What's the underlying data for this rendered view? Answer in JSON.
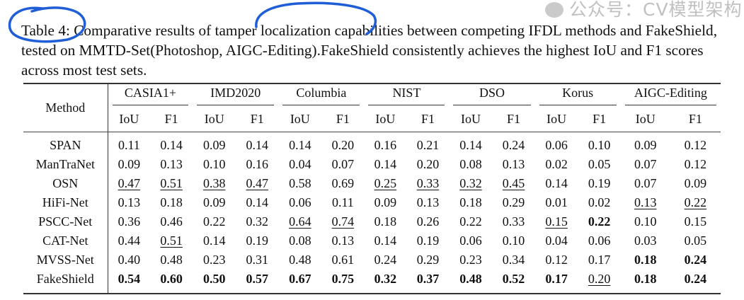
{
  "caption": "Table 4: Comparative results of tamper localization capabilities between competing IFDL methods and FakeShield, tested on MMTD-Set(Photoshop, AIGC-Editing).FakeShield consistently achieves the highest IoU and F1 scores across most test sets.",
  "table": {
    "method_header": "Method",
    "groups": [
      "CASIA1+",
      "IMD2020",
      "Columbia",
      "NIST",
      "DSO",
      "Korus",
      "AIGC-Editing"
    ],
    "metrics": [
      "IoU",
      "F1"
    ],
    "rows": [
      {
        "method": "SPAN",
        "cells": [
          [
            "0.11",
            ""
          ],
          [
            "0.14",
            ""
          ],
          [
            "0.09",
            ""
          ],
          [
            "0.14",
            ""
          ],
          [
            "0.14",
            ""
          ],
          [
            "0.20",
            ""
          ],
          [
            "0.16",
            ""
          ],
          [
            "0.21",
            ""
          ],
          [
            "0.14",
            ""
          ],
          [
            "0.24",
            ""
          ],
          [
            "0.06",
            ""
          ],
          [
            "0.10",
            ""
          ],
          [
            "0.09",
            ""
          ],
          [
            "0.12",
            ""
          ]
        ]
      },
      {
        "method": "ManTraNet",
        "cells": [
          [
            "0.09",
            ""
          ],
          [
            "0.13",
            ""
          ],
          [
            "0.10",
            ""
          ],
          [
            "0.16",
            ""
          ],
          [
            "0.04",
            ""
          ],
          [
            "0.07",
            ""
          ],
          [
            "0.14",
            ""
          ],
          [
            "0.20",
            ""
          ],
          [
            "0.08",
            ""
          ],
          [
            "0.13",
            ""
          ],
          [
            "0.02",
            ""
          ],
          [
            "0.05",
            ""
          ],
          [
            "0.07",
            ""
          ],
          [
            "0.12",
            ""
          ]
        ]
      },
      {
        "method": "OSN",
        "cells": [
          [
            "0.47",
            "u"
          ],
          [
            "0.51",
            "u"
          ],
          [
            "0.38",
            "u"
          ],
          [
            "0.47",
            "u"
          ],
          [
            "0.58",
            ""
          ],
          [
            "0.69",
            ""
          ],
          [
            "0.25",
            "u"
          ],
          [
            "0.33",
            "u"
          ],
          [
            "0.32",
            "u"
          ],
          [
            "0.45",
            "u"
          ],
          [
            "0.14",
            ""
          ],
          [
            "0.19",
            ""
          ],
          [
            "0.07",
            ""
          ],
          [
            "0.09",
            ""
          ]
        ]
      },
      {
        "method": "HiFi-Net",
        "cells": [
          [
            "0.13",
            ""
          ],
          [
            "0.18",
            ""
          ],
          [
            "0.09",
            ""
          ],
          [
            "0.14",
            ""
          ],
          [
            "0.06",
            ""
          ],
          [
            "0.11",
            ""
          ],
          [
            "0.09",
            ""
          ],
          [
            "0.13",
            ""
          ],
          [
            "0.18",
            ""
          ],
          [
            "0.29",
            ""
          ],
          [
            "0.01",
            ""
          ],
          [
            "0.02",
            ""
          ],
          [
            "0.13",
            "u"
          ],
          [
            "0.22",
            "u"
          ]
        ]
      },
      {
        "method": "PSCC-Net",
        "cells": [
          [
            "0.36",
            ""
          ],
          [
            "0.46",
            ""
          ],
          [
            "0.22",
            ""
          ],
          [
            "0.32",
            ""
          ],
          [
            "0.64",
            "u"
          ],
          [
            "0.74",
            "u"
          ],
          [
            "0.18",
            ""
          ],
          [
            "0.26",
            ""
          ],
          [
            "0.22",
            ""
          ],
          [
            "0.33",
            ""
          ],
          [
            "0.15",
            "u"
          ],
          [
            "0.22",
            "b"
          ],
          [
            "0.10",
            ""
          ],
          [
            "0.15",
            ""
          ]
        ]
      },
      {
        "method": "CAT-Net",
        "cells": [
          [
            "0.44",
            ""
          ],
          [
            "0.51",
            "u"
          ],
          [
            "0.14",
            ""
          ],
          [
            "0.19",
            ""
          ],
          [
            "0.08",
            ""
          ],
          [
            "0.13",
            ""
          ],
          [
            "0.14",
            ""
          ],
          [
            "0.19",
            ""
          ],
          [
            "0.06",
            ""
          ],
          [
            "0.10",
            ""
          ],
          [
            "0.04",
            ""
          ],
          [
            "0.06",
            ""
          ],
          [
            "0.03",
            ""
          ],
          [
            "0.05",
            ""
          ]
        ]
      },
      {
        "method": "MVSS-Net",
        "cells": [
          [
            "0.40",
            ""
          ],
          [
            "0.48",
            ""
          ],
          [
            "0.23",
            ""
          ],
          [
            "0.31",
            ""
          ],
          [
            "0.48",
            ""
          ],
          [
            "0.61",
            ""
          ],
          [
            "0.24",
            ""
          ],
          [
            "0.29",
            ""
          ],
          [
            "0.23",
            ""
          ],
          [
            "0.34",
            ""
          ],
          [
            "0.12",
            ""
          ],
          [
            "0.17",
            ""
          ],
          [
            "0.18",
            "b"
          ],
          [
            "0.24",
            "b"
          ]
        ]
      },
      {
        "method": "FakeShield",
        "cells": [
          [
            "0.54",
            "b"
          ],
          [
            "0.60",
            "b"
          ],
          [
            "0.50",
            "b"
          ],
          [
            "0.57",
            "b"
          ],
          [
            "0.67",
            "b"
          ],
          [
            "0.75",
            "b"
          ],
          [
            "0.32",
            "b"
          ],
          [
            "0.37",
            "b"
          ],
          [
            "0.48",
            "b"
          ],
          [
            "0.52",
            "b"
          ],
          [
            "0.17",
            "b"
          ],
          [
            "0.20",
            "u"
          ],
          [
            "0.18",
            "b"
          ],
          [
            "0.24",
            "b"
          ]
        ]
      }
    ]
  },
  "watermark": "公众号：CV模型架构",
  "colors": {
    "annotation": "#1f5ed6",
    "rule": "#333333"
  }
}
